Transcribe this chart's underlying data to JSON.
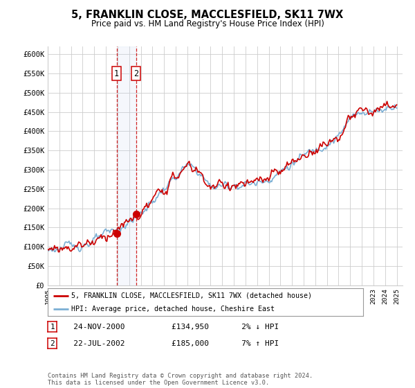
{
  "title": "5, FRANKLIN CLOSE, MACCLESFIELD, SK11 7WX",
  "subtitle": "Price paid vs. HM Land Registry's House Price Index (HPI)",
  "ylabel_ticks": [
    "£0",
    "£50K",
    "£100K",
    "£150K",
    "£200K",
    "£250K",
    "£300K",
    "£350K",
    "£400K",
    "£450K",
    "£500K",
    "£550K",
    "£600K"
  ],
  "ytick_values": [
    0,
    50000,
    100000,
    150000,
    200000,
    250000,
    300000,
    350000,
    400000,
    450000,
    500000,
    550000,
    600000
  ],
  "ylim": [
    0,
    620000
  ],
  "t1_x": 2000.917,
  "t1_y": 134950,
  "t2_x": 2002.583,
  "t2_y": 185000,
  "legend_line1": "5, FRANKLIN CLOSE, MACCLESFIELD, SK11 7WX (detached house)",
  "legend_line2": "HPI: Average price, detached house, Cheshire East",
  "table_row1": [
    "1",
    "24-NOV-2000",
    "£134,950",
    "2% ↓ HPI"
  ],
  "table_row2": [
    "2",
    "22-JUL-2002",
    "£185,000",
    "7% ↑ HPI"
  ],
  "footnote": "Contains HM Land Registry data © Crown copyright and database right 2024.\nThis data is licensed under the Open Government Licence v3.0.",
  "line_color_red": "#cc0000",
  "line_color_blue": "#7bafd4",
  "background_color": "#ffffff",
  "grid_color": "#cccccc",
  "vline_color": "#cc0000",
  "shade_color": "#ddeeff",
  "xlim_left": 1995,
  "xlim_right": 2025.5
}
